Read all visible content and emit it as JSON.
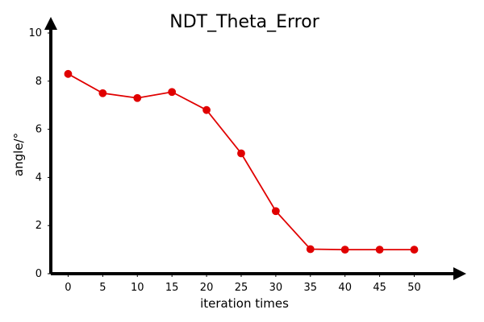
{
  "chart_data": {
    "type": "line",
    "title": "NDT_Theta_Error",
    "xlabel": "iteration times",
    "ylabel": "angle/°",
    "x": [
      0,
      5,
      10,
      15,
      20,
      25,
      30,
      35,
      40,
      45,
      50
    ],
    "x_ticks": [
      "0",
      "5",
      "10",
      "15",
      "20",
      "25",
      "30",
      "35",
      "40",
      "45",
      "50"
    ],
    "y_ticks": [
      "0",
      "2",
      "4",
      "6",
      "8",
      "10"
    ],
    "xlim": [
      -2.5,
      56
    ],
    "ylim": [
      0,
      10
    ],
    "grid": false,
    "series": [
      {
        "values": [
          8.3,
          7.5,
          7.3,
          7.55,
          6.8,
          5.0,
          2.6,
          1.02,
          1.0,
          1.0,
          1.0
        ],
        "color": "#e00000",
        "marker": "circle"
      }
    ]
  }
}
